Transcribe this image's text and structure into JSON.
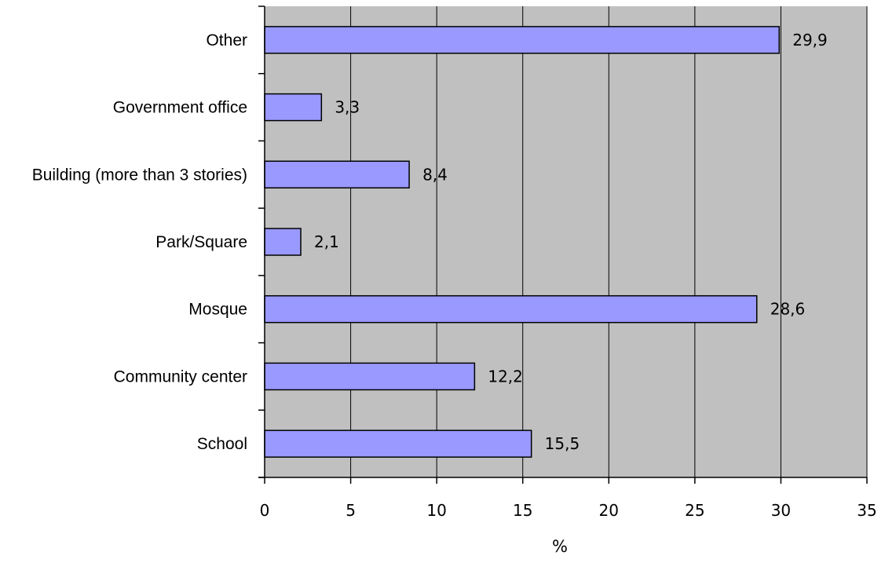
{
  "chart_data": {
    "type": "bar",
    "orientation": "horizontal",
    "categories": [
      "Other",
      "Government office",
      "Building (more than 3 stories)",
      "Park/Square",
      "Mosque",
      "Community center",
      "School"
    ],
    "values": [
      29.9,
      3.3,
      8.4,
      2.1,
      28.6,
      12.2,
      15.5
    ],
    "value_labels": [
      "29,9",
      "3,3",
      "8,4",
      "2,1",
      "28,6",
      "12,2",
      "15,5"
    ],
    "xlabel": "%",
    "xlim": [
      0,
      35
    ],
    "xticks": [
      "0",
      "5",
      "10",
      "15",
      "20",
      "25",
      "30",
      "35"
    ],
    "grid": true,
    "colors": {
      "bar_fill": "#9999ff",
      "bar_stroke": "#000000",
      "plot_background": "#c0c0c0",
      "grid": "#000000"
    }
  }
}
